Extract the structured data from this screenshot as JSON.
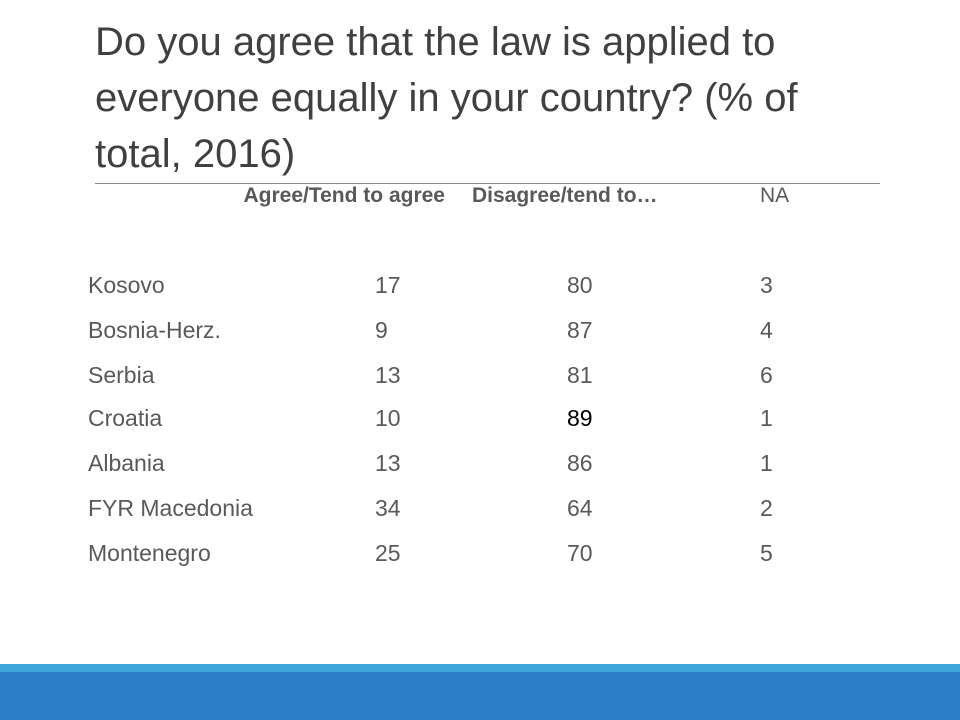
{
  "header": {
    "title": "Do you agree that the law is applied to everyone equally in your country? (% of total, 2016)"
  },
  "table": {
    "columns": [
      "Agree/Tend to agree",
      "Disagree/tend to…",
      "NA"
    ],
    "rows": [
      [
        "Kosovo",
        17,
        80,
        3
      ],
      [
        "Bosnia-Herz.",
        9,
        87,
        4
      ],
      [
        "Serbia",
        13,
        81,
        6
      ],
      [
        "Croatia",
        10,
        89,
        1
      ],
      [
        "Albania",
        13,
        86,
        1
      ],
      [
        "FYR Macedonia",
        34,
        64,
        2
      ],
      [
        "Montenegro",
        25,
        70,
        5
      ]
    ]
  }
}
